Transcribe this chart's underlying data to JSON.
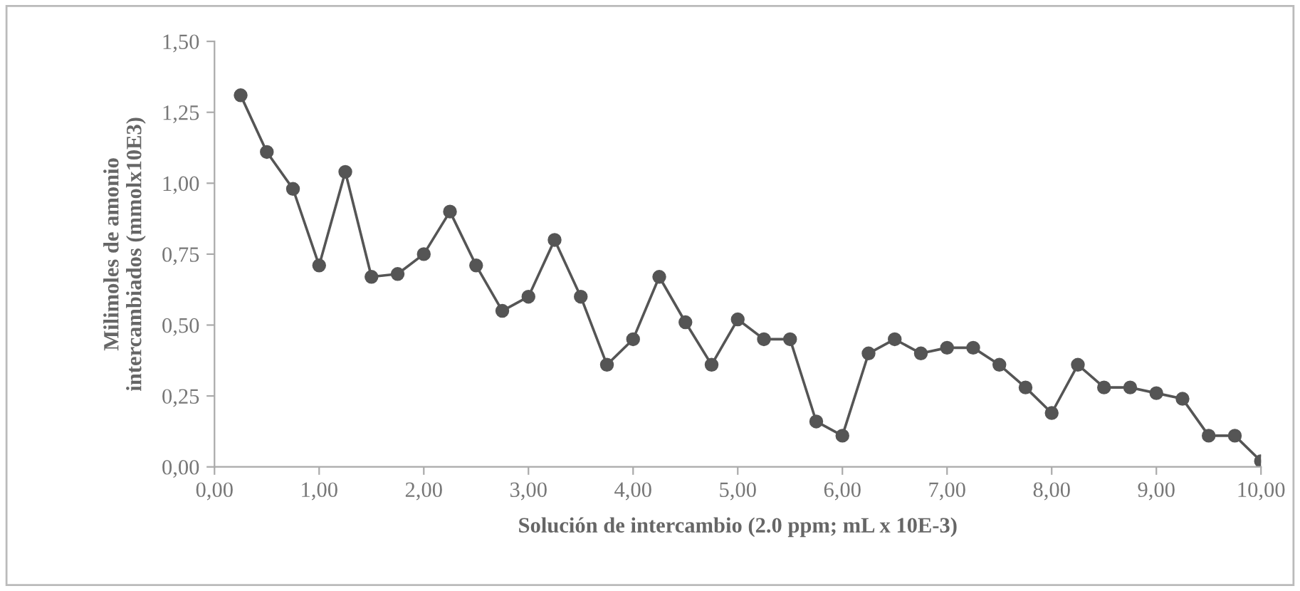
{
  "chart_data": {
    "type": "line",
    "xlabel": "Solución de intercambio (2.0 ppm; mL x 10E-3)",
    "ylabel": "Milimoles de amonio\nintercambiados (mmolx10E3)",
    "x": [
      0.25,
      0.5,
      0.75,
      1.0,
      1.25,
      1.5,
      1.75,
      2.0,
      2.25,
      2.5,
      2.75,
      3.0,
      3.25,
      3.5,
      3.75,
      4.0,
      4.25,
      4.5,
      4.75,
      5.0,
      5.25,
      5.5,
      5.75,
      6.0,
      6.25,
      6.5,
      6.75,
      7.0,
      7.25,
      7.5,
      7.75,
      8.0,
      8.25,
      8.5,
      8.75,
      9.0,
      9.25,
      9.5,
      9.75,
      10.0
    ],
    "series": [
      {
        "color": "#555555",
        "values": [
          1.31,
          1.11,
          0.98,
          0.71,
          1.04,
          0.67,
          0.68,
          0.75,
          0.9,
          0.71,
          0.55,
          0.6,
          0.8,
          0.6,
          0.36,
          0.45,
          0.67,
          0.51,
          0.36,
          0.52,
          0.45,
          0.45,
          0.16,
          0.11,
          0.4,
          0.45,
          0.4,
          0.42,
          0.42,
          0.36,
          0.28,
          0.19,
          0.36,
          0.28,
          0.28,
          0.26,
          0.24,
          0.11,
          0.11,
          0.02
        ]
      }
    ],
    "xlim": [
      0,
      10
    ],
    "ylim": [
      0,
      1.5
    ],
    "xticks": [
      {
        "value": 0,
        "label": "0,00"
      },
      {
        "value": 1,
        "label": "1,00"
      },
      {
        "value": 2,
        "label": "2,00"
      },
      {
        "value": 3,
        "label": "3,00"
      },
      {
        "value": 4,
        "label": "4,00"
      },
      {
        "value": 5,
        "label": "5,00"
      },
      {
        "value": 6,
        "label": "6,00"
      },
      {
        "value": 7,
        "label": "7,00"
      },
      {
        "value": 8,
        "label": "8,00"
      },
      {
        "value": 9,
        "label": "9,00"
      },
      {
        "value": 10,
        "label": "10,00"
      }
    ],
    "yticks": [
      {
        "value": 0,
        "label": "0,00"
      },
      {
        "value": 0.25,
        "label": "0,25"
      },
      {
        "value": 0.5,
        "label": "0,50"
      },
      {
        "value": 0.75,
        "label": "0,75"
      },
      {
        "value": 1.0,
        "label": "1,00"
      },
      {
        "value": 1.25,
        "label": "1,25"
      },
      {
        "value": 1.5,
        "label": "1,50"
      }
    ],
    "grid": false,
    "legend": false,
    "marker": "circle",
    "line_style": "solid"
  }
}
